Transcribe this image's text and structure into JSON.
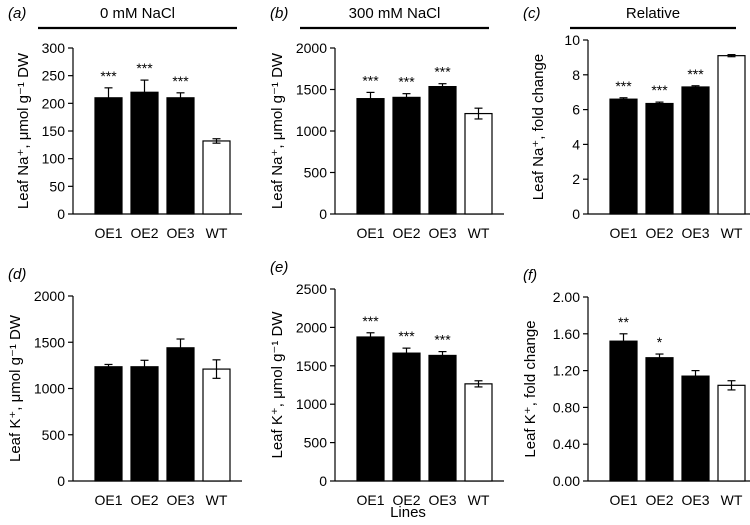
{
  "figure": {
    "xlabel": "Lines"
  },
  "chart_data": [
    {
      "panel": "a",
      "type": "bar",
      "title": "0 mM NaCl",
      "ylabel": "Leaf Na⁺, μmol g⁻¹ DW",
      "categories": [
        "OE1",
        "OE2",
        "OE3",
        "WT"
      ],
      "values": [
        210,
        220,
        210,
        132
      ],
      "errors": [
        18,
        22,
        9,
        4
      ],
      "significance": [
        "***",
        "***",
        "***",
        ""
      ],
      "bar_colors": [
        "#000000",
        "#000000",
        "#000000",
        "#ffffff"
      ],
      "ylim": [
        0,
        300
      ],
      "yticks": [
        0,
        50,
        100,
        150,
        200,
        250,
        300
      ],
      "yticklabels": [
        "0",
        "50",
        "100",
        "150",
        "200",
        "250",
        "300"
      ]
    },
    {
      "panel": "b",
      "type": "bar",
      "title": "300 mM NaCl",
      "ylabel": "Leaf Na⁺, μmol g⁻¹ DW",
      "categories": [
        "OE1",
        "OE2",
        "OE3",
        "WT"
      ],
      "values": [
        1390,
        1405,
        1535,
        1210
      ],
      "errors": [
        75,
        45,
        35,
        65
      ],
      "significance": [
        "***",
        "***",
        "***",
        ""
      ],
      "bar_colors": [
        "#000000",
        "#000000",
        "#000000",
        "#ffffff"
      ],
      "ylim": [
        0,
        2000
      ],
      "yticks": [
        0,
        500,
        1000,
        1500,
        2000
      ],
      "yticklabels": [
        "0",
        "500",
        "1000",
        "1500",
        "2000"
      ]
    },
    {
      "panel": "c",
      "type": "bar",
      "title": "Relative",
      "ylabel": "Leaf Na⁺, fold change",
      "categories": [
        "OE1",
        "OE2",
        "OE3",
        "WT"
      ],
      "values": [
        6.6,
        6.35,
        7.3,
        9.1
      ],
      "errors": [
        0.08,
        0.08,
        0.07,
        0.06
      ],
      "significance": [
        "***",
        "***",
        "***",
        ""
      ],
      "bar_colors": [
        "#000000",
        "#000000",
        "#000000",
        "#ffffff"
      ],
      "ylim": [
        0,
        10
      ],
      "yticks": [
        0,
        2,
        4,
        6,
        8,
        10
      ],
      "yticklabels": [
        "0",
        "2",
        "4",
        "6",
        "8",
        "10"
      ]
    },
    {
      "panel": "d",
      "type": "bar",
      "title": "",
      "ylabel": "Leaf K⁺, μmol g⁻¹ DW",
      "categories": [
        "OE1",
        "OE2",
        "OE3",
        "WT"
      ],
      "values": [
        1235,
        1235,
        1440,
        1210
      ],
      "errors": [
        25,
        70,
        95,
        100
      ],
      "significance": [
        "",
        "",
        "",
        ""
      ],
      "bar_colors": [
        "#000000",
        "#000000",
        "#000000",
        "#ffffff"
      ],
      "ylim": [
        0,
        2000
      ],
      "yticks": [
        0,
        500,
        1000,
        1500,
        2000
      ],
      "yticklabels": [
        "0",
        "500",
        "1000",
        "1500",
        "2000"
      ]
    },
    {
      "panel": "e",
      "type": "bar",
      "title": "",
      "ylabel": "Leaf K⁺, μmol g⁻¹ DW",
      "categories": [
        "OE1",
        "OE2",
        "OE3",
        "WT"
      ],
      "values": [
        1875,
        1665,
        1635,
        1265
      ],
      "errors": [
        55,
        65,
        50,
        40
      ],
      "significance": [
        "***",
        "***",
        "***",
        ""
      ],
      "bar_colors": [
        "#000000",
        "#000000",
        "#000000",
        "#ffffff"
      ],
      "ylim": [
        0,
        2500
      ],
      "yticks": [
        0,
        500,
        1000,
        1500,
        2000,
        2500
      ],
      "yticklabels": [
        "0",
        "500",
        "1000",
        "1500",
        "2000",
        "2500"
      ]
    },
    {
      "panel": "f",
      "type": "bar",
      "title": "",
      "ylabel": "Leaf K⁺, fold change",
      "categories": [
        "OE1",
        "OE2",
        "OE3",
        "WT"
      ],
      "values": [
        1.52,
        1.34,
        1.14,
        1.04
      ],
      "errors": [
        0.08,
        0.04,
        0.06,
        0.05
      ],
      "significance": [
        "**",
        "*",
        "",
        ""
      ],
      "bar_colors": [
        "#000000",
        "#000000",
        "#000000",
        "#ffffff"
      ],
      "ylim": [
        0,
        2
      ],
      "yticks": [
        0,
        0.4,
        0.8,
        1.2,
        1.6,
        2.0
      ],
      "yticklabels": [
        "0.00",
        "0.40",
        "0.80",
        "1.20",
        "1.60",
        "2.00"
      ]
    }
  ]
}
